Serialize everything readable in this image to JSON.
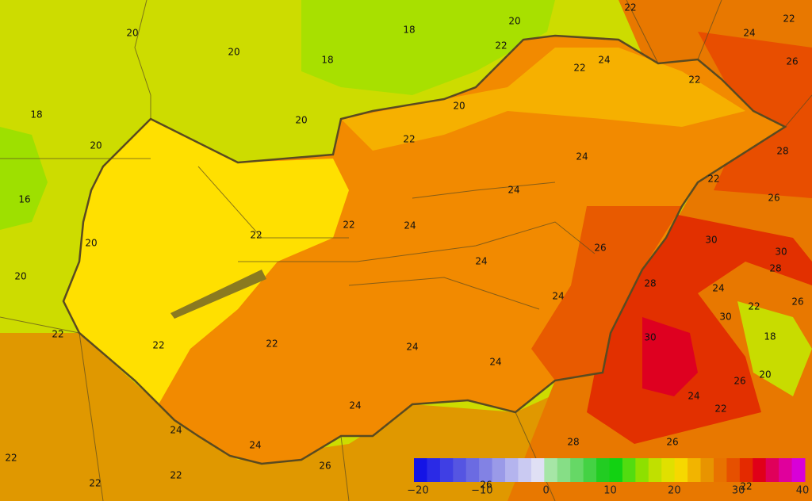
{
  "contour_labels": [
    "20",
    "20",
    "18",
    "20",
    "22",
    "22",
    "24",
    "22",
    "18",
    "26",
    "24",
    "22",
    "22",
    "18",
    "20",
    "20",
    "20",
    "22",
    "28",
    "24",
    "22",
    "24",
    "16",
    "26",
    "22",
    "22",
    "24",
    "20",
    "30",
    "24",
    "26",
    "30",
    "28",
    "20",
    "28",
    "24",
    "24",
    "22",
    "26",
    "30",
    "22",
    "22",
    "22",
    "24",
    "30",
    "18",
    "24",
    "20",
    "26",
    "24",
    "22",
    "24",
    "24",
    "24",
    "28",
    "26",
    "22",
    "26",
    "22",
    "22",
    "26",
    "22"
  ],
  "colorbar": {
    "ticks": [
      "−20",
      "−10",
      "0",
      "10",
      "20",
      "30",
      "40"
    ],
    "colors": [
      "#1414e6",
      "#2a2ae6",
      "#3f3fe4",
      "#5555e2",
      "#6b6be2",
      "#8282e4",
      "#9a9ae8",
      "#b4b4ee",
      "#cacaf2",
      "#e0e0f4",
      "#a6e6a6",
      "#86de86",
      "#66d866",
      "#44d244",
      "#22cc22",
      "#12d212",
      "#52dc10",
      "#8ee000",
      "#c0e000",
      "#e0e000",
      "#f6d800",
      "#f2b400",
      "#e89400",
      "#e87200",
      "#e65000",
      "#e42a00",
      "#e00018",
      "#e0005a",
      "#e0009c",
      "#d800d8"
    ]
  }
}
